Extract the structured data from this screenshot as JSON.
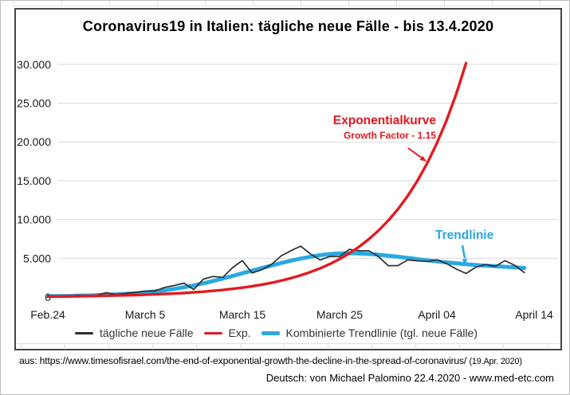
{
  "chart": {
    "title": "Coronavirus19 in Italien: tägliche neue Fälle - bis 13.4.2020",
    "annotations": {
      "exponential_label": "Exponentialkurve",
      "exponential_sublabel": "Growth Factor - 1.15",
      "trend_label": "Trendlinie"
    }
  },
  "footer": {
    "source_line": "aus: https://www.timesofisrael.com/the-end-of-exponential-growth-the-decline-in-the-spread-of-coronavirus/",
    "source_date": "(19.Apr. 2020)",
    "credit_line": "Deutsch: von Michael Palomino 22.4.2020 - www.med-etc.com"
  },
  "colors": {
    "daily": "#2e2e2e",
    "exponential": "#e21a20",
    "trend": "#29a9e1",
    "grid": "#d9d9d9",
    "axis_text": "#1a1a1a",
    "frame": "#454545"
  },
  "chart_data": {
    "type": "line",
    "title": "Coronavirus19 in Italien: tägliche neue Fälle - bis 13.4.2020",
    "x_unit": "days since Feb 24 2020",
    "ylim": [
      0,
      30000
    ],
    "grid": "horizontal",
    "legend_position": "bottom",
    "xticks": [
      {
        "label": "Feb.24",
        "day": 0
      },
      {
        "label": "March 5",
        "day": 10
      },
      {
        "label": "March 15",
        "day": 20
      },
      {
        "label": "March 25",
        "day": 30
      },
      {
        "label": "April 04",
        "day": 40
      },
      {
        "label": "April 14",
        "day": 50
      }
    ],
    "yticks": [
      {
        "label": "30.000",
        "value": 30000
      },
      {
        "label": "25.000",
        "value": 25000
      },
      {
        "label": "20.000",
        "value": 20000
      },
      {
        "label": "15.000",
        "value": 15000
      },
      {
        "label": "10.000",
        "value": 10000
      },
      {
        "label": "5.000",
        "value": 5000
      },
      {
        "label": "0",
        "value": 0
      }
    ],
    "series": [
      {
        "name": "tägliche neue Fälle",
        "color": "#2e2e2e",
        "stroke_width": 1.7,
        "values": [
          221,
          93,
          78,
          250,
          238,
          240,
          566,
          342,
          466,
          587,
          769,
          778,
          1247,
          1492,
          1797,
          977,
          2313,
          2651,
          2547,
          3800,
          4700,
          3100,
          3526,
          4207,
          5322,
          5986,
          6557,
          5560,
          4789,
          5249,
          5210,
          6153,
          5959,
          5974,
          5217,
          4050,
          4053,
          4782,
          4668,
          4585,
          4805,
          4316,
          3599,
          3039,
          3836,
          4204,
          3951,
          4694,
          4092,
          3153
        ]
      },
      {
        "name": "Exp.",
        "color": "#e21a20",
        "stroke_width": 3.4,
        "growth_factor": 1.15,
        "values": [
          74,
          85,
          98,
          113,
          129,
          149,
          171,
          197,
          226,
          260,
          299,
          344,
          396,
          455,
          524,
          602,
          693,
          796,
          916,
          1053,
          1211,
          1393,
          1602,
          1842,
          2118,
          2436,
          2801,
          3222,
          3705,
          4261,
          4900,
          5635,
          6480,
          7452,
          8570,
          9855,
          11333,
          13033,
          14988,
          17236,
          19822,
          22795,
          26215,
          30147
        ]
      },
      {
        "name": "Kombinierte Trendlinie (tgl. neue Fälle)",
        "color": "#29a9e1",
        "stroke_width": 5,
        "values": [
          120,
          130,
          145,
          165,
          195,
          235,
          285,
          345,
          415,
          500,
          600,
          720,
          870,
          1050,
          1260,
          1500,
          1770,
          2070,
          2390,
          2720,
          3060,
          3400,
          3740,
          4070,
          4390,
          4690,
          4960,
          5200,
          5400,
          5545,
          5630,
          5650,
          5620,
          5550,
          5450,
          5330,
          5190,
          5040,
          4890,
          4740,
          4600,
          4470,
          4350,
          4240,
          4140,
          4050,
          3970,
          3900,
          3840,
          3750
        ]
      }
    ]
  }
}
